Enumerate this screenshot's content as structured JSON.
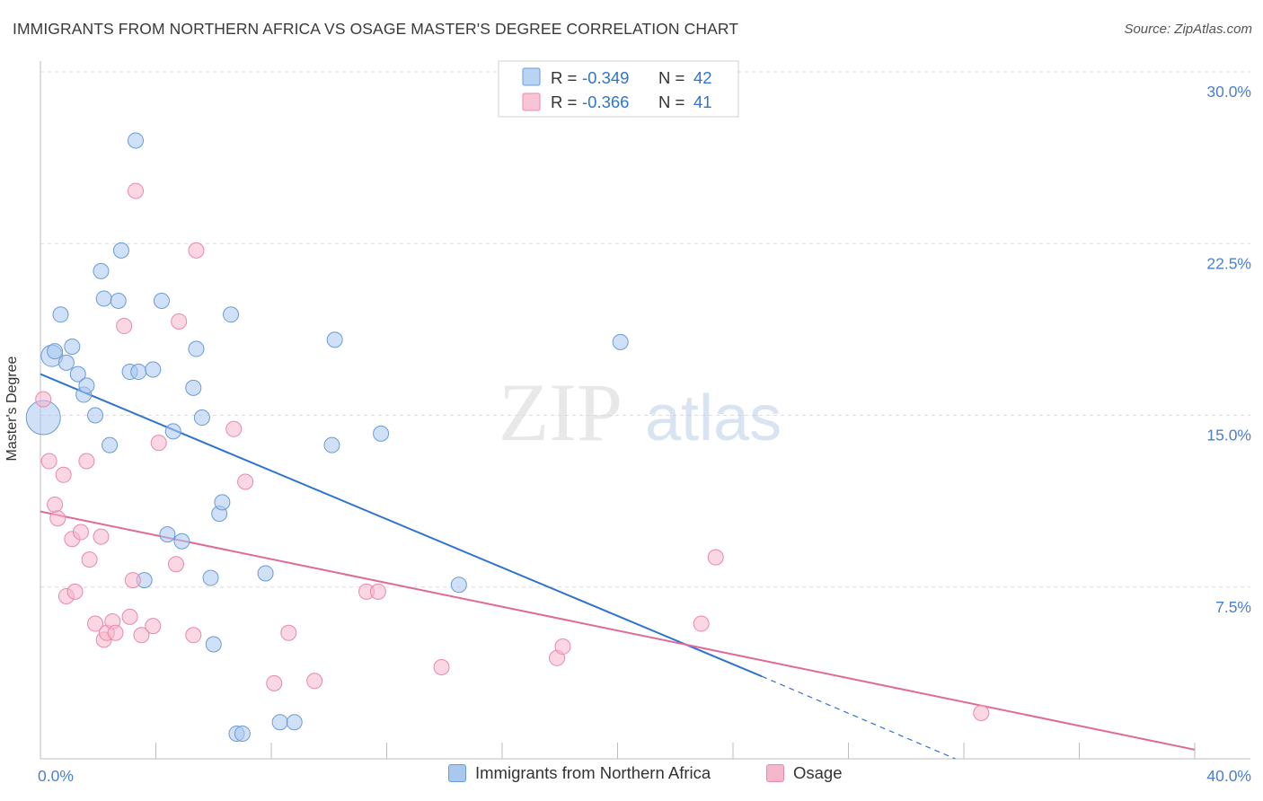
{
  "header": {
    "title": "IMMIGRANTS FROM NORTHERN AFRICA VS OSAGE MASTER'S DEGREE CORRELATION CHART",
    "source": "Source: ZipAtlas.com"
  },
  "watermark": {
    "zip": "ZIP",
    "atlas": "atlas"
  },
  "colors": {
    "blue_fill": "#a9c8f0",
    "blue_stroke": "#6a9bd8",
    "blue_line": "#2f74cf",
    "pink_fill": "#f6b7cb",
    "pink_stroke": "#e98aa8",
    "pink_line": "#e06a97",
    "tick_label": "#4a7fd0",
    "grid": "#dcdcdc"
  },
  "legend": {
    "rows": [
      {
        "r_label": "R = ",
        "r_value": "-0.349",
        "n_label": "N = ",
        "n_value": "42"
      },
      {
        "r_label": "R = ",
        "r_value": "-0.366",
        "n_label": "N = ",
        "n_value": "41"
      }
    ]
  },
  "chart_data": {
    "type": "scatter",
    "title": "IMMIGRANTS FROM NORTHERN AFRICA VS OSAGE MASTER'S DEGREE CORRELATION CHART",
    "xlabel": "",
    "ylabel": "Master's Degree",
    "xlim": [
      0,
      40
    ],
    "ylim": [
      0,
      30
    ],
    "x_tick_labels": [
      {
        "value": 0,
        "label": "0.0%"
      },
      {
        "value": 40,
        "label": "40.0%"
      }
    ],
    "y_tick_labels": [
      {
        "value": 7.5,
        "label": "7.5%"
      },
      {
        "value": 15,
        "label": "15.0%"
      },
      {
        "value": 22.5,
        "label": "22.5%"
      },
      {
        "value": 30,
        "label": "30.0%"
      }
    ],
    "grid": true,
    "legend_position": "top-center",
    "series": [
      {
        "name": "Immigrants from Northern Africa",
        "r": -0.349,
        "n": 42,
        "points": [
          [
            0.1,
            14.9,
            3
          ],
          [
            0.4,
            17.6,
            2
          ],
          [
            0.5,
            17.8,
            1
          ],
          [
            0.7,
            19.4,
            1
          ],
          [
            0.9,
            17.3,
            1
          ],
          [
            1.1,
            18.0,
            1
          ],
          [
            1.3,
            16.8,
            1
          ],
          [
            1.5,
            15.9,
            1
          ],
          [
            1.6,
            16.3,
            1
          ],
          [
            1.9,
            15.0,
            1
          ],
          [
            2.1,
            21.3,
            1
          ],
          [
            2.2,
            20.1,
            1
          ],
          [
            2.4,
            13.7,
            1
          ],
          [
            2.7,
            20.0,
            1
          ],
          [
            2.8,
            22.2,
            1
          ],
          [
            3.1,
            16.9,
            1
          ],
          [
            3.3,
            27.0,
            1
          ],
          [
            3.4,
            16.9,
            1
          ],
          [
            3.6,
            7.8,
            1
          ],
          [
            3.9,
            17.0,
            1
          ],
          [
            4.2,
            20.0,
            1
          ],
          [
            4.4,
            9.8,
            1
          ],
          [
            4.6,
            14.3,
            1
          ],
          [
            4.9,
            9.5,
            1
          ],
          [
            5.3,
            16.2,
            1
          ],
          [
            5.4,
            17.9,
            1
          ],
          [
            5.6,
            14.9,
            1
          ],
          [
            5.9,
            7.9,
            1
          ],
          [
            6.0,
            5.0,
            1
          ],
          [
            6.2,
            10.7,
            1
          ],
          [
            6.3,
            11.2,
            1
          ],
          [
            6.6,
            19.4,
            1
          ],
          [
            6.8,
            1.1,
            1
          ],
          [
            7.0,
            1.1,
            1
          ],
          [
            7.8,
            8.1,
            1
          ],
          [
            8.3,
            1.6,
            1
          ],
          [
            8.8,
            1.6,
            1
          ],
          [
            10.1,
            13.7,
            1
          ],
          [
            10.2,
            18.3,
            1
          ],
          [
            11.8,
            14.2,
            1
          ],
          [
            14.5,
            7.6,
            1
          ],
          [
            20.1,
            18.2,
            1
          ]
        ],
        "trend": {
          "x0": 0,
          "y0": 16.8,
          "x1": 25.0,
          "y1": 3.6,
          "dash_to_x": 31.7,
          "dash_to_y": 0
        }
      },
      {
        "name": "Osage",
        "r": -0.366,
        "n": 41,
        "points": [
          [
            0.1,
            15.7,
            1
          ],
          [
            0.3,
            13.0,
            1
          ],
          [
            0.5,
            11.1,
            1
          ],
          [
            0.6,
            10.5,
            1
          ],
          [
            0.8,
            12.4,
            1
          ],
          [
            0.9,
            7.1,
            1
          ],
          [
            1.1,
            9.6,
            1
          ],
          [
            1.2,
            7.3,
            1
          ],
          [
            1.4,
            9.9,
            1
          ],
          [
            1.6,
            13.0,
            1
          ],
          [
            1.7,
            8.7,
            1
          ],
          [
            1.9,
            5.9,
            1
          ],
          [
            2.1,
            9.7,
            1
          ],
          [
            2.2,
            5.2,
            1
          ],
          [
            2.3,
            5.5,
            1
          ],
          [
            2.5,
            6.0,
            1
          ],
          [
            2.6,
            5.5,
            1
          ],
          [
            2.9,
            18.9,
            1
          ],
          [
            3.1,
            6.2,
            1
          ],
          [
            3.2,
            7.8,
            1
          ],
          [
            3.3,
            24.8,
            1
          ],
          [
            3.5,
            5.4,
            1
          ],
          [
            3.9,
            5.8,
            1
          ],
          [
            4.1,
            13.8,
            1
          ],
          [
            4.7,
            8.5,
            1
          ],
          [
            4.8,
            19.1,
            1
          ],
          [
            5.3,
            5.4,
            1
          ],
          [
            5.4,
            22.2,
            1
          ],
          [
            6.7,
            14.4,
            1
          ],
          [
            7.1,
            12.1,
            1
          ],
          [
            8.1,
            3.3,
            1
          ],
          [
            8.6,
            5.5,
            1
          ],
          [
            9.5,
            3.4,
            1
          ],
          [
            11.3,
            7.3,
            1
          ],
          [
            11.7,
            7.3,
            1
          ],
          [
            13.9,
            4.0,
            1
          ],
          [
            17.9,
            4.4,
            1
          ],
          [
            18.1,
            4.9,
            1
          ],
          [
            22.9,
            5.9,
            1
          ],
          [
            23.4,
            8.8,
            1
          ],
          [
            32.6,
            2.0,
            1
          ]
        ],
        "trend": {
          "x0": 0,
          "y0": 10.8,
          "x1": 40,
          "y1": 0.4
        }
      }
    ]
  }
}
